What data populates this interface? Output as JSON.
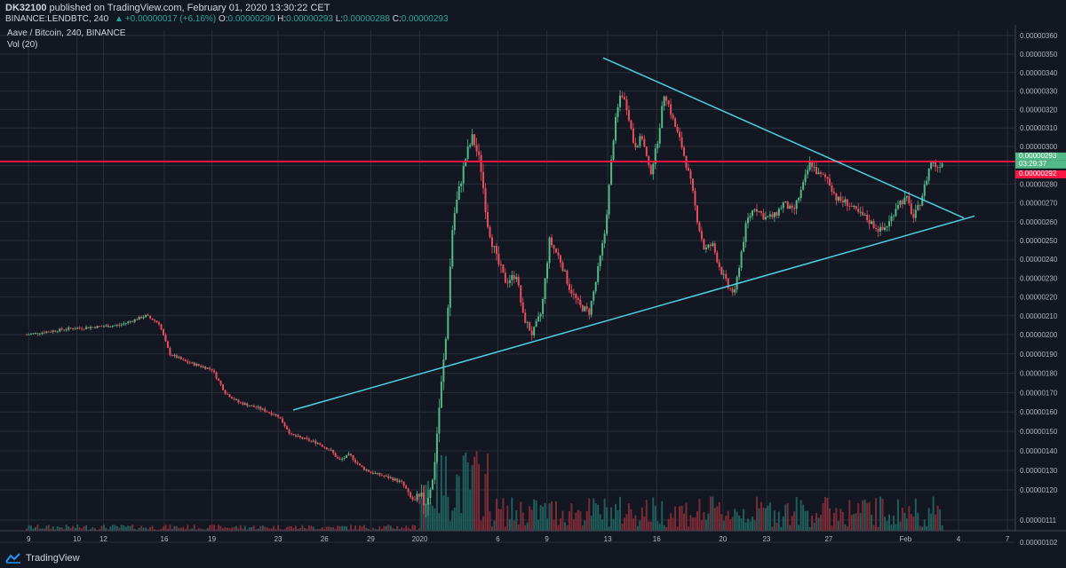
{
  "header": {
    "author": "DK32100",
    "published_text": "published on TradingView.com, February 01, 2020 13:30:22 CET",
    "symbol_prefix": "BINANCE:LENDBTC, 240",
    "change_text": "+0.00000017 (+6.16%)",
    "o_label": "O:",
    "o_value": "0.00000290",
    "h_label": "H:",
    "h_value": "0.00000293",
    "l_label": "L:",
    "l_value": "0.00000288",
    "c_label": "C:",
    "c_value": "0.00000293"
  },
  "legend": {
    "title": "Aave / Bitcoin, 240, BINANCE",
    "vol": "Vol (20)"
  },
  "price_labels": {
    "last_price": "0.00000293",
    "countdown": "03:29:37",
    "resistance": "0.00000292"
  },
  "footer": {
    "brand": "TradingView"
  },
  "colors": {
    "background": "#131722",
    "grid": "#2a2e39",
    "up": "#53b987",
    "down": "#eb4d5c",
    "vol_up": "#1f5e5a",
    "vol_down": "#7a2b35",
    "trendline": "#4dd0e1",
    "resistance": "#ff1744"
  },
  "chart_data": {
    "type": "candlestick",
    "title": "Aave / Bitcoin, 240, BINANCE",
    "interval": "240",
    "x_tick_labels": [
      "9",
      "10",
      "12",
      "16",
      "19",
      "23",
      "26",
      "29",
      "2020",
      "6",
      "9",
      "13",
      "16",
      "20",
      "23",
      "27",
      "Feb",
      "4",
      "7"
    ],
    "y_tick_labels": [
      "0.00000360",
      "0.00000350",
      "0.00000340",
      "0.00000330",
      "0.00000320",
      "0.00000310",
      "0.00000300",
      "0.00000290",
      "0.00000280",
      "0.00000270",
      "0.00000260",
      "0.00000250",
      "0.00000240",
      "0.00000230",
      "0.00000220",
      "0.00000210",
      "0.00000200",
      "0.00000190",
      "0.00000180",
      "0.00000170",
      "0.00000160",
      "0.00000150",
      "0.00000140",
      "0.00000130",
      "0.00000120",
      "0.00000111",
      "0.00000102"
    ],
    "ylim": [
      1e-06,
      3.62e-06
    ],
    "y_scale": "log",
    "grid": true,
    "price_path": [
      [
        0,
        200
      ],
      [
        3,
        203
      ],
      [
        7,
        205
      ],
      [
        9,
        210
      ],
      [
        10,
        206
      ],
      [
        10.8,
        190
      ],
      [
        12,
        186
      ],
      [
        14,
        182
      ],
      [
        15,
        170
      ],
      [
        16,
        165
      ],
      [
        17.5,
        162
      ],
      [
        19,
        158
      ],
      [
        20,
        148
      ],
      [
        22,
        144
      ],
      [
        23,
        140
      ],
      [
        23.6,
        135
      ],
      [
        24.4,
        138
      ],
      [
        25.2,
        132
      ],
      [
        26,
        129
      ],
      [
        27.5,
        126
      ],
      [
        28.3,
        124
      ],
      [
        28.9,
        118
      ],
      [
        29.5,
        116
      ],
      [
        30.2,
        117
      ],
      [
        30.7,
        125
      ],
      [
        31.2,
        165
      ],
      [
        31.7,
        200
      ],
      [
        32.2,
        260
      ],
      [
        32.7,
        278
      ],
      [
        33.2,
        295
      ],
      [
        33.7,
        305
      ],
      [
        34.3,
        290
      ],
      [
        34.8,
        260
      ],
      [
        35.5,
        240
      ],
      [
        36.2,
        228
      ],
      [
        37,
        232
      ],
      [
        37.5,
        210
      ],
      [
        38.2,
        200
      ],
      [
        38.9,
        212
      ],
      [
        39.5,
        250
      ],
      [
        40.3,
        240
      ],
      [
        41,
        225
      ],
      [
        41.8,
        215
      ],
      [
        42.5,
        212
      ],
      [
        43,
        228
      ],
      [
        43.7,
        255
      ],
      [
        44.4,
        310
      ],
      [
        44.9,
        330
      ],
      [
        45.4,
        320
      ],
      [
        45.9,
        300
      ],
      [
        46.5,
        305
      ],
      [
        47.1,
        285
      ],
      [
        47.6,
        300
      ],
      [
        48.2,
        330
      ],
      [
        48.8,
        315
      ],
      [
        49.5,
        300
      ],
      [
        50.2,
        280
      ],
      [
        50.7,
        260
      ],
      [
        51.2,
        245
      ],
      [
        51.8,
        248
      ],
      [
        52.4,
        235
      ],
      [
        53,
        225
      ],
      [
        53.5,
        222
      ],
      [
        53.9,
        240
      ],
      [
        54.4,
        260
      ],
      [
        55,
        268
      ],
      [
        55.8,
        262
      ],
      [
        56.5,
        263
      ],
      [
        57.2,
        270
      ],
      [
        57.9,
        265
      ],
      [
        58.6,
        278
      ],
      [
        59.2,
        292
      ],
      [
        59.8,
        285
      ],
      [
        60.5,
        283
      ],
      [
        61.2,
        272
      ],
      [
        62,
        270
      ],
      [
        62.7,
        265
      ],
      [
        63.4,
        262
      ],
      [
        64,
        258
      ],
      [
        64.6,
        255
      ],
      [
        65.2,
        260
      ],
      [
        65.8,
        270
      ],
      [
        66.5,
        272
      ],
      [
        67,
        262
      ],
      [
        67.4,
        268
      ],
      [
        67.9,
        280
      ],
      [
        68.3,
        292
      ],
      [
        68.8,
        289
      ],
      [
        69.3,
        293
      ]
    ],
    "volume_profile": "low through Dec 29, spike around Dec 30 – Jan 4, moderate afterwards",
    "trendlines": [
      {
        "name": "upper",
        "from": [
          "Jan 13 (late)",
          3.48e-06
        ],
        "to": [
          "Feb 5",
          2.62e-06
        ]
      },
      {
        "name": "lower",
        "from": [
          "Dec 25",
          1.61e-06
        ],
        "to": [
          "Feb 5",
          2.63e-06
        ]
      },
      {
        "name": "horizontal",
        "level": 2.92e-06
      }
    ],
    "last_price": 2.93e-06,
    "resistance_level": 2.92e-06
  }
}
